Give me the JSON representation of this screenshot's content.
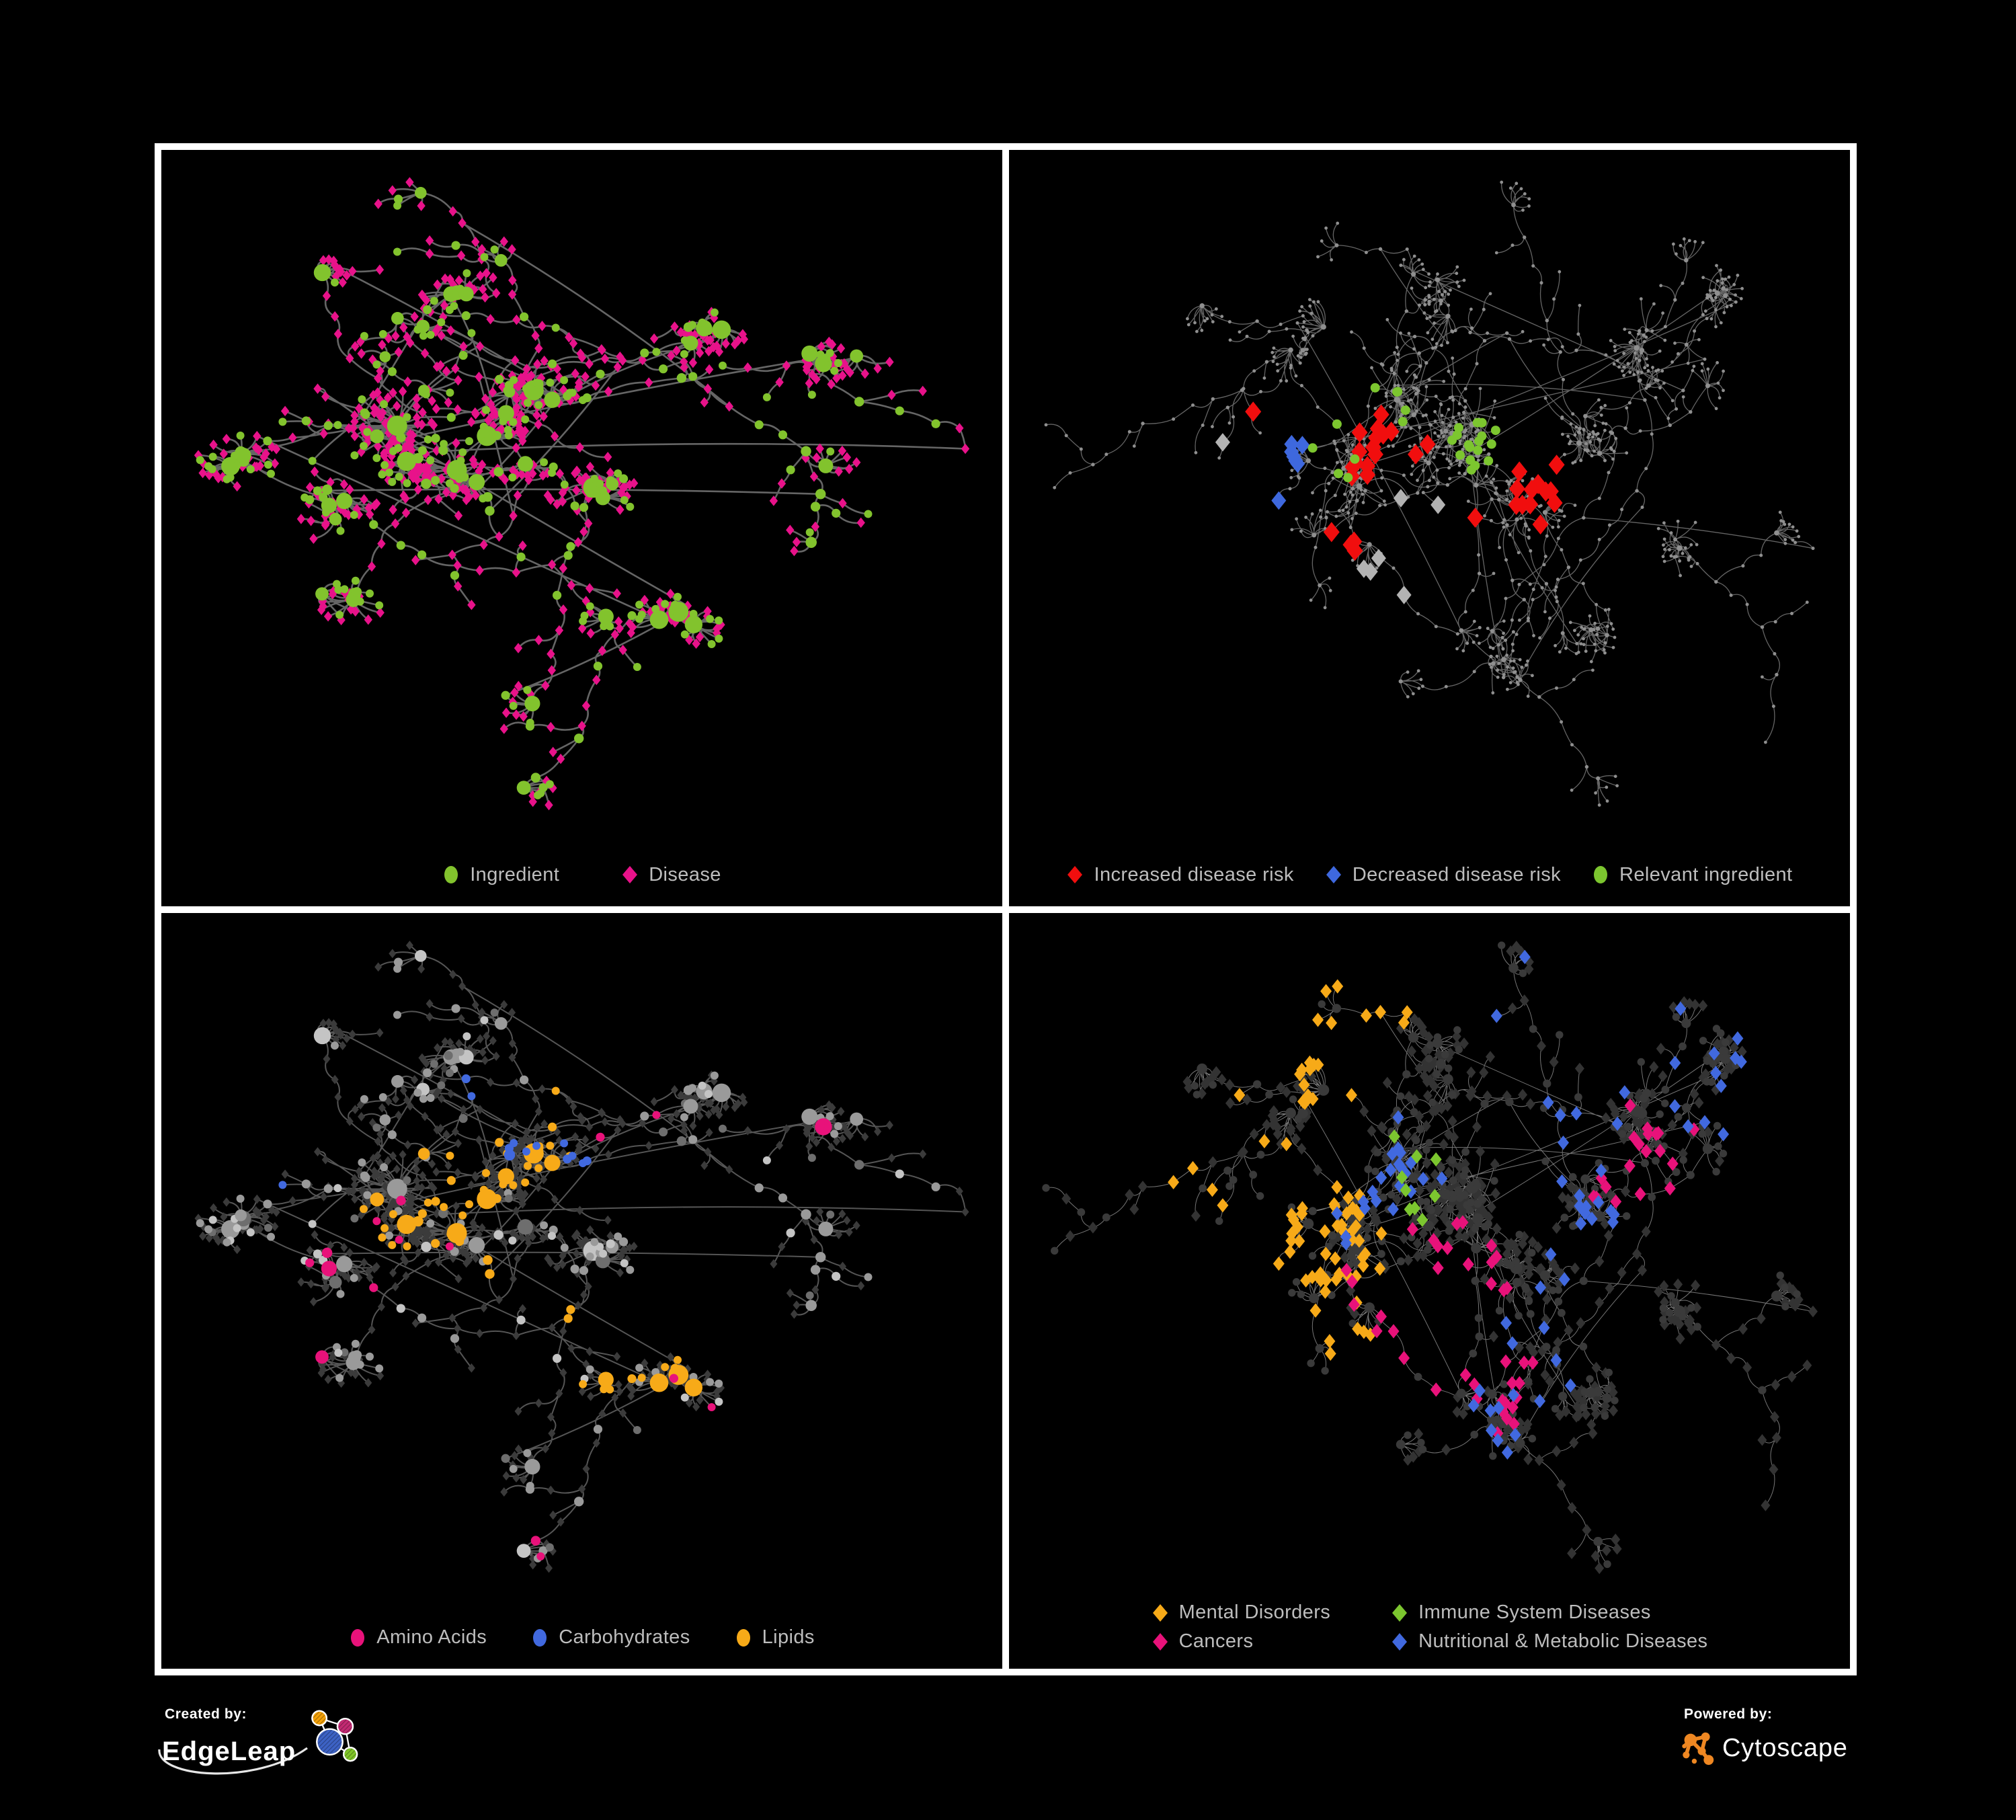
{
  "figure": {
    "background": "#000000",
    "frame_color": "#ffffff"
  },
  "footer": {
    "created_by": {
      "label": "Created by:",
      "brand": "EdgeLeap"
    },
    "powered_by": {
      "label": "Powered by:",
      "brand": "Cytoscape"
    }
  },
  "palette": {
    "ingredient_green": "#82C32D",
    "disease_magenta": "#E8128A",
    "increased_risk_red": "#F10E0E",
    "decreased_risk_blue": "#3E68DE",
    "relevant_ingredient_green": "#7CC62F",
    "amino_acids_pink": "#E8127A",
    "carbohydrates_blue": "#4169DF",
    "lipids_amber": "#F7AA18",
    "mental_disorders_amber": "#F7AA18",
    "cancers_pink": "#E8127A",
    "immune_green": "#7CC62F",
    "nutritional_metabolic_blue": "#4169DF",
    "legend_text": "#BDBDBD",
    "edgeleap_orange": "#F2A007",
    "edgeleap_magenta": "#C22A72",
    "edgeleap_blue": "#3D62C4",
    "edgeleap_green": "#7FC427",
    "cytoscape_orange": "#EE8722"
  },
  "chart_data": {
    "type": "network",
    "description": "Four views of an ingredient-disease association network rendered on black panels",
    "layouts": [
      {
        "id": "left",
        "seed": 1337,
        "workspace": [
          1180,
          1000
        ],
        "clusters": [
          [
            0.3,
            0.42,
            130,
            70
          ],
          [
            0.46,
            0.34,
            100,
            55
          ],
          [
            0.37,
            0.52,
            90,
            45
          ],
          [
            0.53,
            0.56,
            80,
            32
          ],
          [
            0.22,
            0.6,
            70,
            24
          ],
          [
            0.66,
            0.2,
            55,
            18
          ],
          [
            0.8,
            0.28,
            55,
            18
          ],
          [
            0.37,
            0.12,
            45,
            14
          ],
          [
            0.63,
            0.84,
            60,
            22
          ],
          [
            0.12,
            0.5,
            40,
            10
          ],
          [
            0.25,
            0.8,
            45,
            12
          ]
        ],
        "chains": 24,
        "chain_len": 9,
        "tip_fan_prob": 0.5,
        "fan_size": 11,
        "fans_per_cluster": 2,
        "cross_links": 18,
        "circle_fraction": 0.24
      },
      {
        "id": "right",
        "seed": 4242,
        "workspace": [
          1240,
          1000
        ],
        "clusters": [
          [
            0.33,
            0.38,
            100,
            48
          ],
          [
            0.45,
            0.42,
            90,
            40
          ],
          [
            0.27,
            0.52,
            85,
            46
          ],
          [
            0.52,
            0.55,
            70,
            34
          ],
          [
            0.62,
            0.45,
            60,
            26
          ],
          [
            0.4,
            0.22,
            50,
            18
          ],
          [
            0.72,
            0.3,
            55,
            20
          ],
          [
            0.5,
            0.8,
            60,
            26
          ],
          [
            0.78,
            0.62,
            45,
            14
          ],
          [
            0.18,
            0.3,
            45,
            16
          ],
          [
            0.85,
            0.2,
            40,
            12
          ],
          [
            0.65,
            0.75,
            40,
            12
          ]
        ],
        "chains": 32,
        "chain_len": 9,
        "tip_fan_prob": 0.55,
        "fan_size": 10,
        "fans_per_cluster": 2,
        "cross_links": 14,
        "circle_fraction": 0.3
      }
    ],
    "panels": [
      {
        "id": "ingredient-disease",
        "quadrant": "top-left",
        "layout": "left",
        "hseed": 7,
        "edges": {
          "stroke": "#6E6E6E",
          "width": 2.6,
          "opacity": 0.92
        },
        "base": {
          "mode": "by-kind",
          "circle": {
            "fills": [
              [
                "#82C32D",
                1.0
              ]
            ],
            "r_min": 5.5,
            "r_per_deg": 0.55,
            "r_max": 15
          },
          "diamond": {
            "fill": "#E8128A",
            "r": 6.2
          }
        },
        "highlights": [],
        "legend_layout": "row",
        "legend": [
          {
            "label": "Ingredient",
            "shape": "circle",
            "color": "#82C32D"
          },
          {
            "label": "Disease",
            "shape": "diamond",
            "color": "#E8128A"
          }
        ]
      },
      {
        "id": "disease-risk",
        "quadrant": "top-right",
        "layout": "right",
        "hseed": 11,
        "edges": {
          "stroke": "#6F6F6F",
          "width": 1.3,
          "opacity": 0.9
        },
        "base": {
          "mode": "uniform",
          "circle": {
            "fills": [
              [
                "#8F8F8F",
                1.0
              ]
            ],
            "r_min": 2.3,
            "r_per_deg": 0.12,
            "r_max": 4.5
          },
          "diamond": {
            "fill": "#8F8F8F",
            "r": 2.3
          }
        },
        "highlights": [
          {
            "name": "increased-disease-risk",
            "color": "#F10E0E",
            "shape": "diamond",
            "r": 12,
            "count": 34,
            "jitter": 150,
            "anchors": [
              [
                0.34,
                0.33
              ],
              [
                0.45,
                0.4
              ],
              [
                0.55,
                0.5
              ],
              [
                0.4,
                0.52
              ],
              [
                0.63,
                0.44
              ],
              [
                0.59,
                0.86
              ]
            ]
          },
          {
            "name": "decreased-disease-risk",
            "color": "#3E68DE",
            "shape": "diamond",
            "r": 11,
            "count": 7,
            "jitter": 60,
            "anchors": [
              [
                0.3,
                0.49
              ],
              [
                0.33,
                0.41
              ],
              [
                0.89,
                0.34
              ]
            ]
          },
          {
            "name": "unchanged-risk",
            "color": "#B3B3B3",
            "shape": "diamond",
            "r": 11,
            "count": 7,
            "jitter": 120,
            "anchors": [
              [
                0.28,
                0.46
              ],
              [
                0.5,
                0.53
              ],
              [
                0.45,
                0.62
              ]
            ]
          },
          {
            "name": "relevant-ingredient",
            "color": "#7CC62F",
            "shape": "circle",
            "r": 7,
            "count": 27,
            "jitter": 200,
            "anchors": [
              [
                0.38,
                0.4
              ],
              [
                0.45,
                0.34
              ],
              [
                0.52,
                0.48
              ],
              [
                0.3,
                0.56
              ],
              [
                0.24,
                0.36
              ],
              [
                0.56,
                0.4
              ]
            ]
          }
        ],
        "legend_layout": "row",
        "legend": [
          {
            "label": "Increased disease risk",
            "shape": "diamond",
            "color": "#F10E0E"
          },
          {
            "label": "Decreased disease risk",
            "shape": "diamond",
            "color": "#3E68DE"
          },
          {
            "label": "Relevant ingredient",
            "shape": "circle",
            "color": "#7CC62F"
          }
        ]
      },
      {
        "id": "nutrient-classes",
        "quadrant": "bottom-left",
        "layout": "left",
        "hseed": 13,
        "edges": {
          "stroke": "#5E5E5E",
          "width": 2.0,
          "opacity": 0.9
        },
        "base": {
          "mode": "by-kind",
          "circle": {
            "fills": [
              [
                "#9A9A9A",
                0.62
              ],
              [
                "#C4C4C4",
                0.22
              ],
              [
                "#6E6E6E",
                0.16
              ]
            ],
            "r_min": 5.5,
            "r_per_deg": 0.55,
            "r_max": 15
          },
          "diamond": {
            "fill": "#3B3B3B",
            "r": 5.5
          }
        },
        "highlights": [
          {
            "name": "lipids",
            "color": "#F7AA18",
            "shape": "circle",
            "r": 0,
            "kind": "c",
            "count": 62,
            "jitter": 150,
            "anchors": [
              [
                0.42,
                0.3
              ],
              [
                0.36,
                0.45
              ],
              [
                0.33,
                0.37
              ],
              [
                0.52,
                0.58
              ],
              [
                0.47,
                0.24
              ],
              [
                0.62,
                0.55
              ]
            ]
          },
          {
            "name": "carbohydrates",
            "color": "#4169DF",
            "shape": "circle",
            "r": 0,
            "kind": "c",
            "count": 13,
            "jitter": 70,
            "anchors": [
              [
                0.4,
                0.28
              ],
              [
                0.44,
                0.33
              ],
              [
                0.08,
                0.31
              ]
            ]
          },
          {
            "name": "amino-acids",
            "color": "#E8127A",
            "shape": "circle",
            "r": 0,
            "kind": "c",
            "count": 17,
            "jitter": 330,
            "anchors": [
              [
                0.25,
                0.45
              ],
              [
                0.48,
                0.75
              ],
              [
                0.62,
                0.7
              ],
              [
                0.4,
                0.86
              ],
              [
                0.15,
                0.64
              ],
              [
                0.84,
                0.3
              ],
              [
                0.55,
                0.3
              ],
              [
                0.7,
                0.86
              ]
            ]
          }
        ],
        "legend_layout": "row",
        "legend": [
          {
            "label": "Amino Acids",
            "shape": "circle",
            "color": "#E8127A"
          },
          {
            "label": "Carbohydrates",
            "shape": "circle",
            "color": "#4169DF"
          },
          {
            "label": "Lipids",
            "shape": "circle",
            "color": "#F7AA18"
          }
        ]
      },
      {
        "id": "disease-classes",
        "quadrant": "bottom-right",
        "layout": "right",
        "hseed": 17,
        "edges": {
          "stroke": "#9C9C9C",
          "width": 1.0,
          "opacity": 0.75
        },
        "base": {
          "mode": "by-kind",
          "circle": {
            "fills": [
              [
                "#3A3A3A",
                1.0
              ]
            ],
            "r_min": 5.5,
            "r_per_deg": 0.2,
            "r_max": 9
          },
          "diamond": {
            "fill": "#333333",
            "r": 7
          }
        },
        "highlights": [
          {
            "name": "mental-disorders",
            "color": "#F7AA18",
            "shape": "diamond",
            "r": 8.5,
            "kind": "d",
            "count": 80,
            "jitter": 100,
            "anchors": [
              [
                0.26,
                0.5
              ],
              [
                0.3,
                0.55
              ],
              [
                0.21,
                0.56
              ],
              [
                0.3,
                0.45
              ],
              [
                0.35,
                0.1
              ]
            ]
          },
          {
            "name": "cancers",
            "color": "#E8127A",
            "shape": "diamond",
            "r": 8.5,
            "kind": "d",
            "count": 58,
            "jitter": 120,
            "anchors": [
              [
                0.47,
                0.6
              ],
              [
                0.52,
                0.5
              ],
              [
                0.44,
                0.53
              ],
              [
                0.56,
                0.62
              ],
              [
                0.75,
                0.33
              ],
              [
                0.95,
                0.33
              ]
            ]
          },
          {
            "name": "nutritional-metabolic-diseases",
            "color": "#4169DF",
            "shape": "diamond",
            "r": 8.5,
            "kind": "d",
            "count": 72,
            "jitter": 200,
            "anchors": [
              [
                0.56,
                0.63
              ],
              [
                0.61,
                0.57
              ],
              [
                0.72,
                0.42
              ],
              [
                0.6,
                0.12
              ],
              [
                0.77,
                0.14
              ],
              [
                0.66,
                0.3
              ],
              [
                0.85,
                0.42
              ],
              [
                0.3,
                0.07
              ],
              [
                0.43,
                0.35
              ],
              [
                0.88,
                0.25
              ]
            ]
          },
          {
            "name": "immune-system-diseases",
            "color": "#7CC62F",
            "shape": "diamond",
            "r": 8.5,
            "kind": "d",
            "count": 9,
            "jitter": 260,
            "anchors": [
              [
                0.47,
                0.36
              ],
              [
                0.52,
                0.68
              ],
              [
                0.42,
                0.12
              ]
            ]
          }
        ],
        "legend_layout": "grid",
        "legend": [
          {
            "label": "Mental Disorders",
            "shape": "diamond",
            "color": "#F7AA18"
          },
          {
            "label": "Immune System Diseases",
            "shape": "diamond",
            "color": "#7CC62F"
          },
          {
            "label": "Cancers",
            "shape": "diamond",
            "color": "#E8127A"
          },
          {
            "label": "Nutritional & Metabolic Diseases",
            "shape": "diamond",
            "color": "#4169DF"
          }
        ]
      }
    ]
  }
}
